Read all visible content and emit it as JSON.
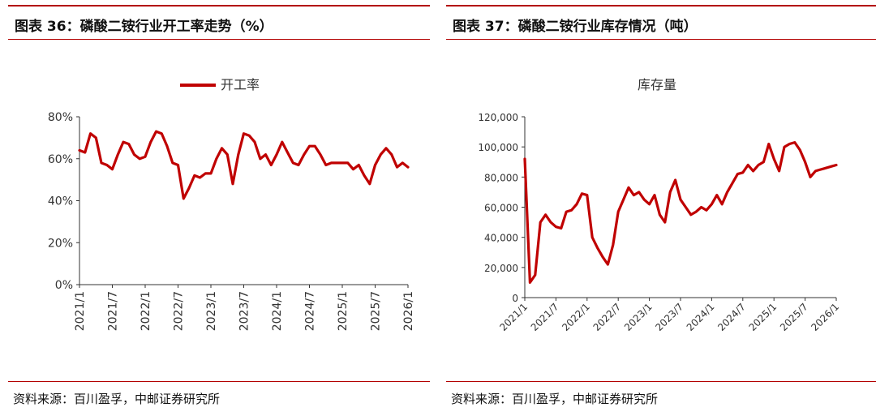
{
  "left": {
    "title": "图表 36：磷酸二铵行业开工率走势（%）",
    "source": "资料来源：百川盈孚，中邮证券研究所"
  },
  "right": {
    "title": "图表 37：磷酸二铵行业库存情况（吨）",
    "source": "资料来源：百川盈孚，中邮证券研究所"
  },
  "colors": {
    "accent": "#b30000",
    "series": "#c00000"
  },
  "chart_data": [
    {
      "type": "line",
      "title": "",
      "legend": "开工率",
      "legend_placement": "top-center",
      "y_ticks": [
        "0%",
        "20%",
        "40%",
        "60%",
        "80%"
      ],
      "ylim": [
        0,
        80
      ],
      "x_ticks": [
        "2021/1",
        "2021/7",
        "2022/1",
        "2022/7",
        "2023/1",
        "2023/7",
        "2024/1",
        "2024/7",
        "2025/1",
        "2025/7",
        "2026/1"
      ],
      "xlim": [
        "2021/1",
        "2026/1"
      ],
      "series": [
        {
          "name": "开工率",
          "x": [
            "2021/1",
            "2021/2",
            "2021/3",
            "2021/4",
            "2021/5",
            "2021/6",
            "2021/7",
            "2021/8",
            "2021/9",
            "2021/10",
            "2021/11",
            "2021/12",
            "2022/1",
            "2022/2",
            "2022/3",
            "2022/4",
            "2022/5",
            "2022/6",
            "2022/7",
            "2022/8",
            "2022/9",
            "2022/10",
            "2022/11",
            "2022/12",
            "2023/1",
            "2023/2",
            "2023/3",
            "2023/4",
            "2023/5",
            "2023/6",
            "2023/7",
            "2023/8",
            "2023/9",
            "2023/10",
            "2023/11",
            "2023/12",
            "2024/1",
            "2024/2",
            "2024/3",
            "2024/4",
            "2024/5",
            "2024/6",
            "2024/7",
            "2024/8",
            "2024/9",
            "2024/10",
            "2024/11",
            "2024/12",
            "2025/1",
            "2025/2",
            "2025/3",
            "2025/4",
            "2025/5",
            "2025/6",
            "2025/7",
            "2025/8",
            "2025/9",
            "2025/10",
            "2025/11",
            "2025/12",
            "2026/1"
          ],
          "values": [
            64,
            63,
            72,
            70,
            58,
            57,
            55,
            62,
            68,
            67,
            62,
            60,
            61,
            68,
            73,
            72,
            66,
            58,
            57,
            41,
            46,
            52,
            51,
            53,
            53,
            60,
            65,
            62,
            48,
            62,
            72,
            71,
            68,
            60,
            62,
            57,
            62,
            68,
            63,
            58,
            57,
            62,
            66,
            66,
            62,
            57,
            58,
            58,
            58,
            58,
            55,
            57,
            52,
            48,
            57,
            62,
            65,
            62,
            56,
            58,
            56
          ]
        }
      ]
    },
    {
      "type": "line",
      "title": "库存量",
      "legend": "",
      "y_ticks": [
        "0",
        "20,000",
        "40,000",
        "60,000",
        "80,000",
        "100,000",
        "120,000"
      ],
      "ylim": [
        0,
        120000
      ],
      "x_ticks": [
        "2021/1",
        "2021/7",
        "2022/1",
        "2022/7",
        "2023/1",
        "2023/7",
        "2024/1",
        "2024/7",
        "2025/1",
        "2025/7",
        "2026/1"
      ],
      "xlim": [
        "2021/1",
        "2026/1"
      ],
      "series": [
        {
          "name": "库存量",
          "x": [
            "2021/1",
            "2021/2",
            "2021/3",
            "2021/4",
            "2021/5",
            "2021/6",
            "2021/7",
            "2021/8",
            "2021/9",
            "2021/10",
            "2021/11",
            "2021/12",
            "2022/1",
            "2022/2",
            "2022/3",
            "2022/4",
            "2022/5",
            "2022/6",
            "2022/7",
            "2022/8",
            "2022/9",
            "2022/10",
            "2022/11",
            "2022/12",
            "2023/1",
            "2023/2",
            "2023/3",
            "2023/4",
            "2023/5",
            "2023/6",
            "2023/7",
            "2023/8",
            "2023/9",
            "2023/10",
            "2023/11",
            "2023/12",
            "2024/1",
            "2024/2",
            "2024/3",
            "2024/4",
            "2024/5",
            "2024/6",
            "2024/7",
            "2024/8",
            "2024/9",
            "2024/10",
            "2024/11",
            "2024/12",
            "2025/1",
            "2025/2",
            "2025/3",
            "2025/4",
            "2025/5",
            "2025/6",
            "2025/7",
            "2025/8",
            "2025/9",
            "2025/10",
            "2025/11",
            "2025/12",
            "2026/1"
          ],
          "values": [
            92000,
            10000,
            15000,
            50000,
            55000,
            50000,
            47000,
            46000,
            57000,
            58000,
            62000,
            69000,
            68000,
            40000,
            33000,
            27000,
            22000,
            35000,
            57000,
            65000,
            73000,
            68000,
            70000,
            65000,
            62000,
            68000,
            55000,
            50000,
            70000,
            78000,
            65000,
            60000,
            55000,
            57000,
            60000,
            58000,
            62000,
            68000,
            62000,
            70000,
            76000,
            82000,
            83000,
            88000,
            84000,
            88000,
            90000,
            102000,
            92000,
            84000,
            100000,
            102000,
            103000,
            98000,
            90000,
            80000,
            84000,
            85000,
            86000,
            87000,
            88000
          ]
        }
      ]
    }
  ]
}
